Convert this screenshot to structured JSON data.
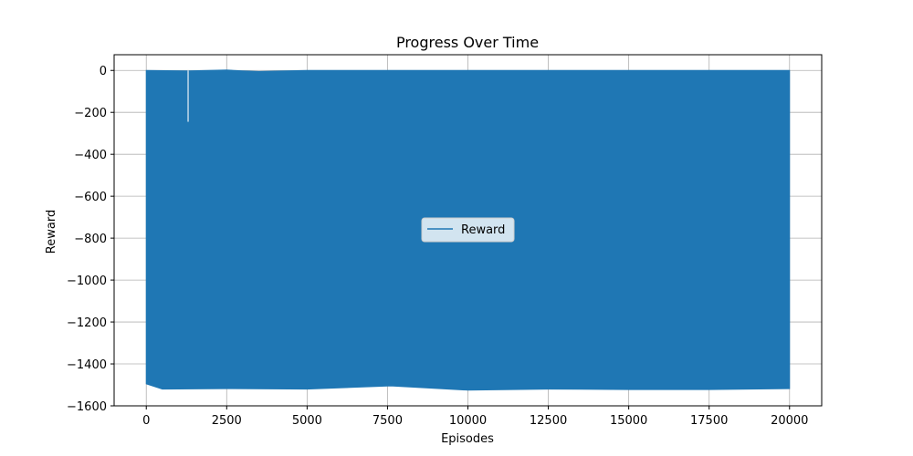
{
  "chart_data": {
    "type": "line",
    "title": "Progress Over Time",
    "xlabel": "Episodes",
    "ylabel": "Reward",
    "xlim": [
      -1000,
      21000
    ],
    "ylim": [
      -1600,
      75
    ],
    "x_ticks": [
      0,
      2500,
      5000,
      7500,
      10000,
      12500,
      15000,
      17500,
      20000
    ],
    "x_tick_labels": [
      "0",
      "2500",
      "5000",
      "7500",
      "10000",
      "12500",
      "15000",
      "17500",
      "20000"
    ],
    "y_ticks": [
      0,
      -200,
      -400,
      -600,
      -800,
      -1000,
      -1200,
      -1400,
      -1600
    ],
    "y_tick_labels": [
      "0",
      "−200",
      "−400",
      "−600",
      "−800",
      "−1000",
      "−1200",
      "−1400",
      "−1600"
    ],
    "grid": true,
    "legend": {
      "position": "center"
    },
    "series": [
      {
        "name": "Reward",
        "color": "#1f77b4",
        "x_range": [
          0,
          20000
        ],
        "upper_envelope": [
          [
            0,
            0
          ],
          [
            1250,
            -2
          ],
          [
            1300,
            -2
          ],
          [
            2500,
            2
          ],
          [
            3000,
            -2
          ],
          [
            3500,
            -5
          ],
          [
            5000,
            0
          ],
          [
            7500,
            0
          ],
          [
            10000,
            0
          ],
          [
            12500,
            0
          ],
          [
            15000,
            0
          ],
          [
            17500,
            0
          ],
          [
            20000,
            0
          ]
        ],
        "lower_envelope": [
          [
            0,
            -1495
          ],
          [
            500,
            -1520
          ],
          [
            2500,
            -1518
          ],
          [
            5000,
            -1520
          ],
          [
            7600,
            -1505
          ],
          [
            10000,
            -1525
          ],
          [
            12500,
            -1520
          ],
          [
            15000,
            -1522
          ],
          [
            17500,
            -1522
          ],
          [
            20000,
            -1518
          ]
        ],
        "spike": {
          "x": 1300,
          "y": -245
        }
      }
    ]
  }
}
